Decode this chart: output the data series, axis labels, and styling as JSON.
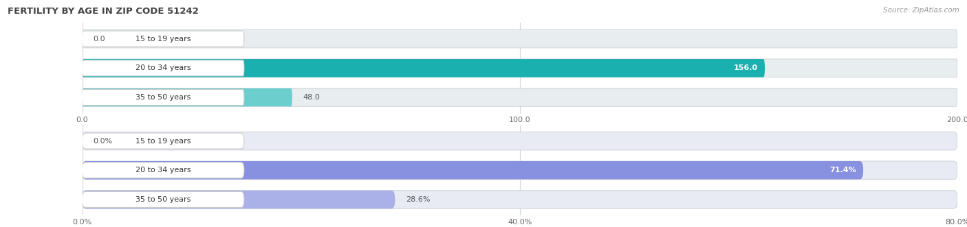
{
  "title": "FERTILITY BY AGE IN ZIP CODE 51242",
  "source_text": "Source: ZipAtlas.com",
  "background_color": "#ffffff",
  "top_chart": {
    "categories": [
      "15 to 19 years",
      "20 to 34 years",
      "35 to 50 years"
    ],
    "values": [
      0.0,
      156.0,
      48.0
    ],
    "max_val": 200.0,
    "tick_values": [
      0.0,
      100.0,
      200.0
    ],
    "tick_labels": [
      "0.0",
      "100.0",
      "200.0"
    ],
    "bar_colors": [
      "#7fd8d8",
      "#1ab0b0",
      "#6dcece"
    ],
    "bar_bg_color": "#e8eef0",
    "label_bg_color": "#ffffff",
    "label_border_color": "#cccccc"
  },
  "bottom_chart": {
    "categories": [
      "15 to 19 years",
      "20 to 34 years",
      "35 to 50 years"
    ],
    "values": [
      0.0,
      71.4,
      28.6
    ],
    "max_val": 80.0,
    "tick_values": [
      0.0,
      40.0,
      80.0
    ],
    "tick_labels": [
      "0.0%",
      "40.0%",
      "80.0%"
    ],
    "bar_colors": [
      "#c0c8f0",
      "#8890e0",
      "#aab0e8"
    ],
    "bar_bg_color": "#e8eaf4",
    "label_bg_color": "#ffffff",
    "label_border_color": "#cccccc"
  }
}
